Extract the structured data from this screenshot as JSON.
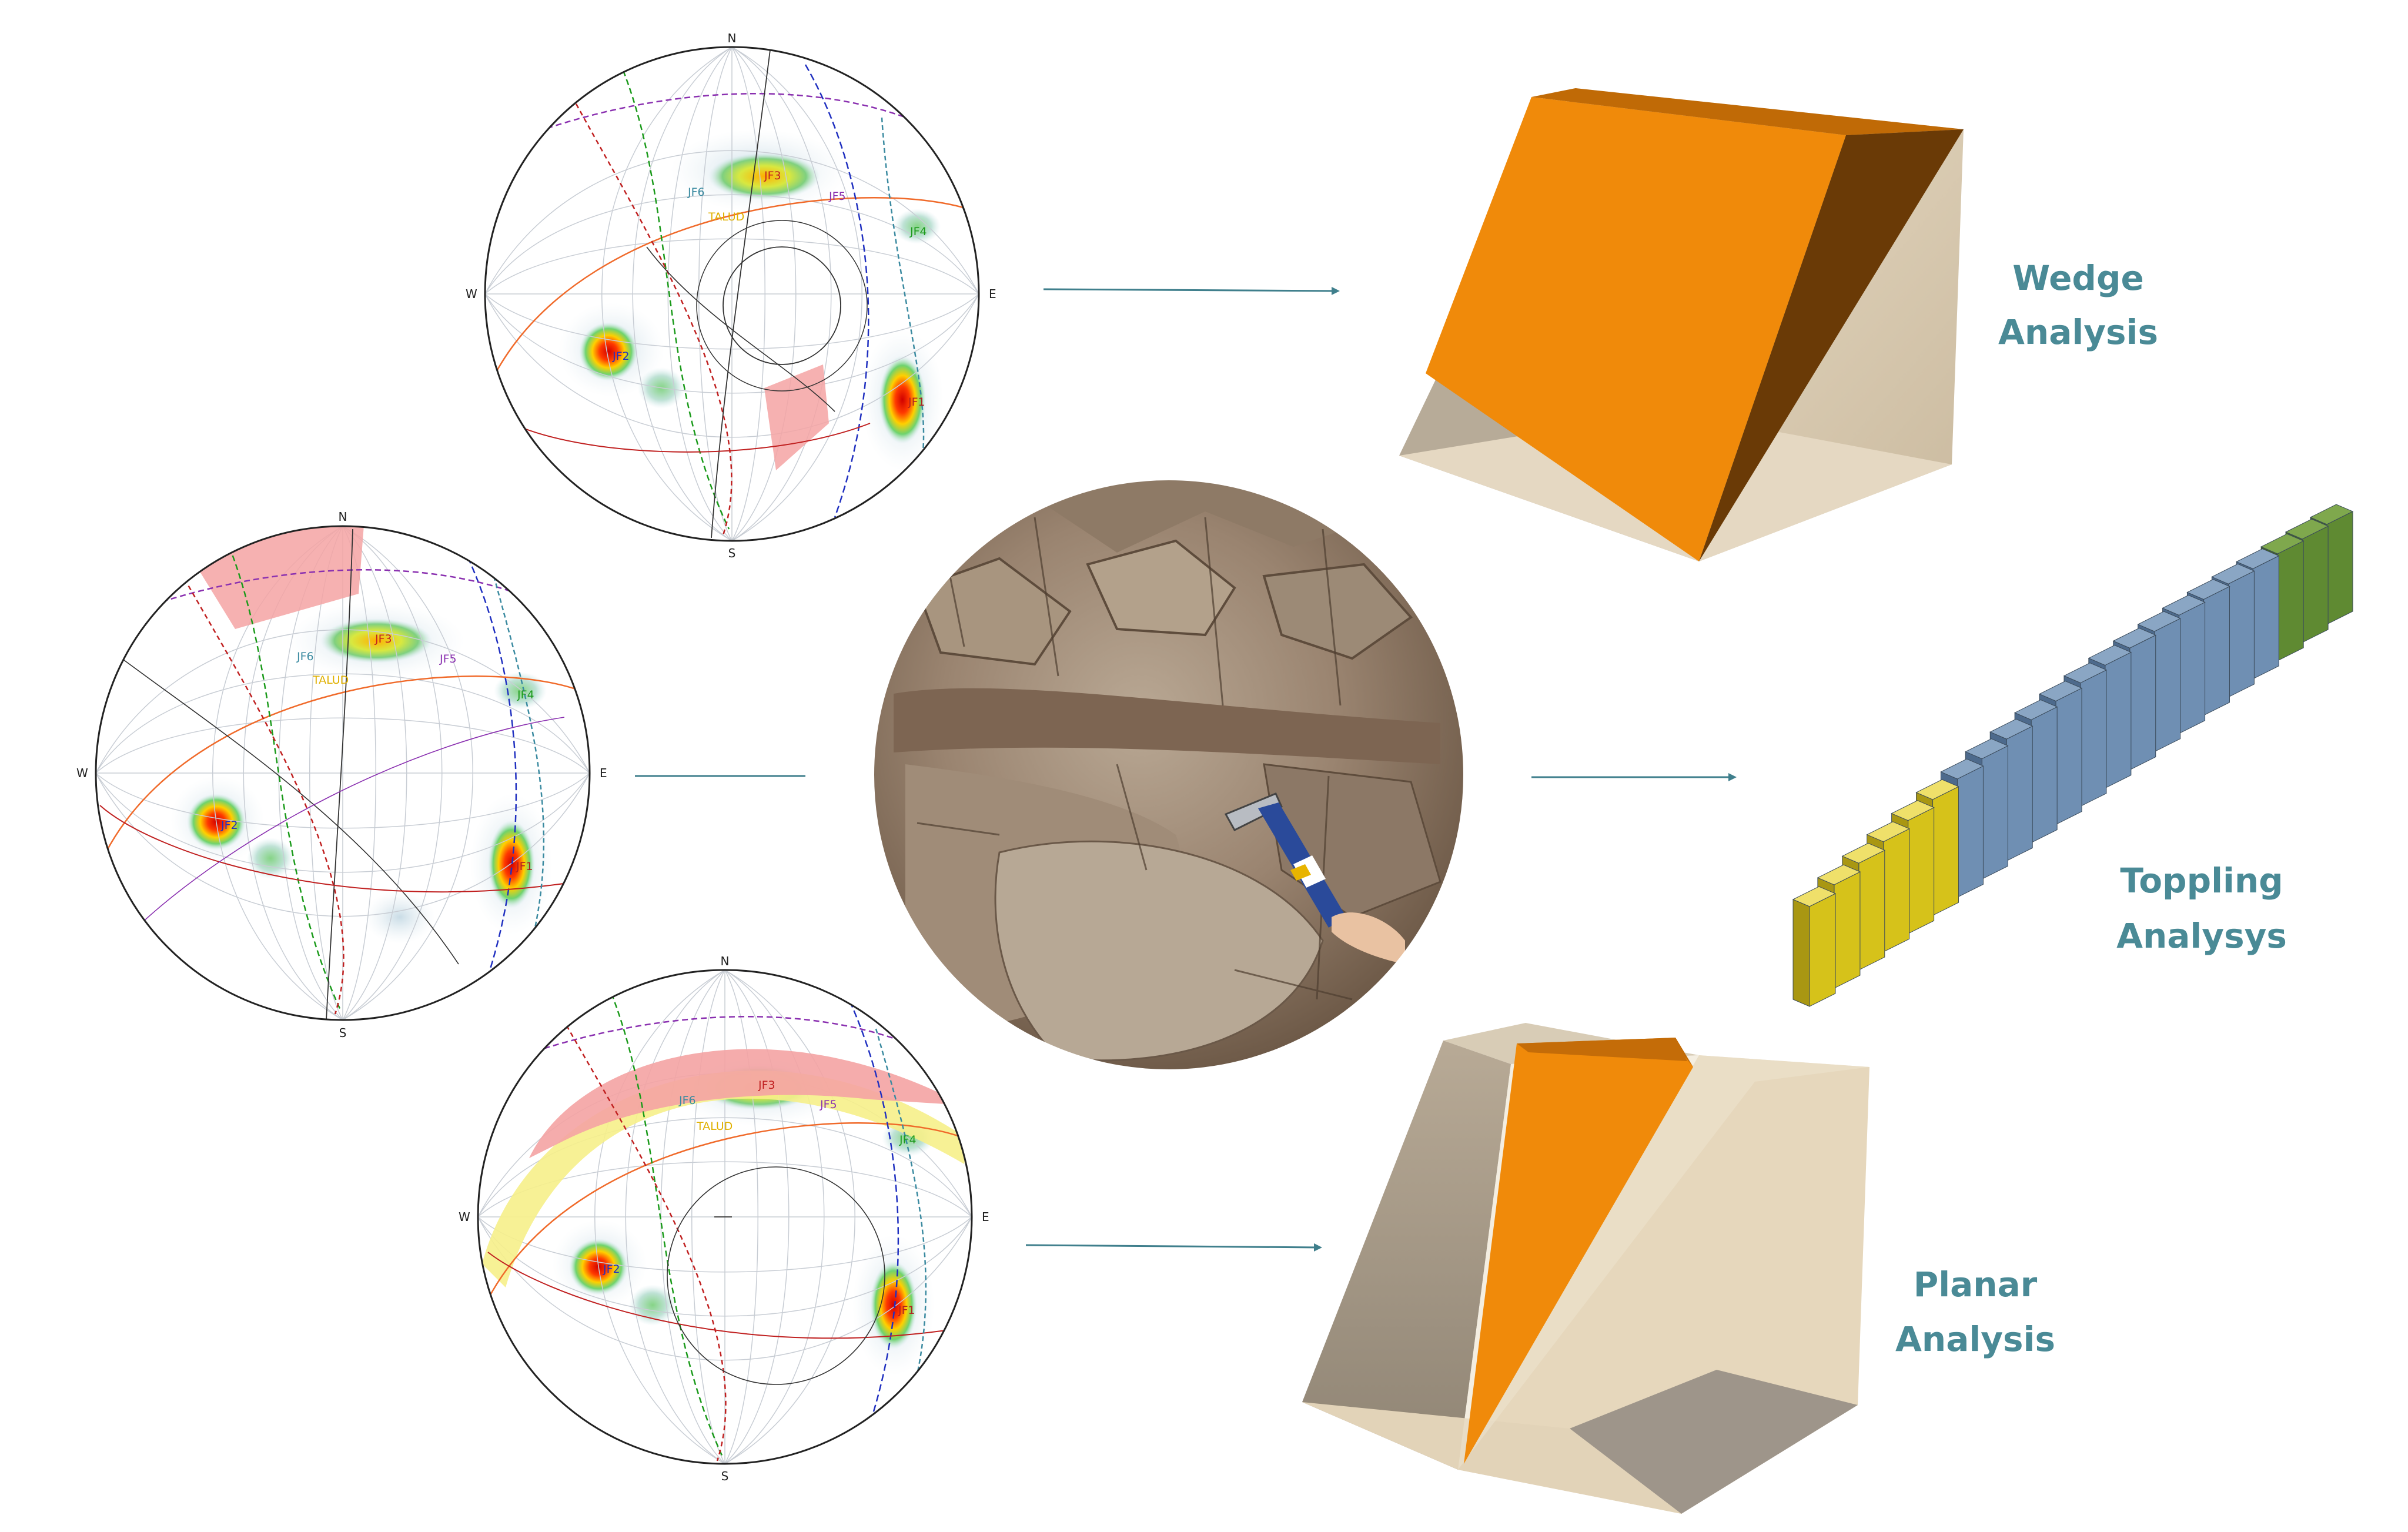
{
  "stereonets": [
    {
      "id": "top",
      "cardinal": {
        "n": "N",
        "s": "S",
        "e": "E",
        "w": "W"
      },
      "labels": [
        "JF1",
        "JF2",
        "JF3",
        "JF4",
        "JF5",
        "JF6",
        "TALUD"
      ]
    },
    {
      "id": "middle",
      "cardinal": {
        "n": "N",
        "s": "S",
        "e": "E",
        "w": "W"
      },
      "labels": [
        "JF1",
        "JF2",
        "JF3",
        "JF4",
        "JF5",
        "JF6",
        "TALUD"
      ]
    },
    {
      "id": "bottom",
      "cardinal": {
        "n": "N",
        "s": "S",
        "e": "E",
        "w": "W"
      },
      "labels": [
        "JF1",
        "JF2",
        "JF3",
        "JF4",
        "JF5",
        "JF6",
        "TALUD"
      ]
    }
  ],
  "analyses": {
    "wedge": {
      "line1": "Wedge",
      "line2": "Analysis"
    },
    "toppling": {
      "line1": "Toppling",
      "line2": "Analysys"
    },
    "planar": {
      "line1": "Planar",
      "line2": "Analysis"
    }
  },
  "colors": {
    "label": "#4a8a96",
    "arrow": "#3f7f8c",
    "orange": "#f08a0a",
    "beige": "#e8dcc6",
    "topple_blue": "#6f8fb3",
    "topple_yellow": "#d6c21a",
    "topple_green": "#5f8a32",
    "jf1": "#b02020",
    "jf2": "#2030c0",
    "jf3": "#c02020",
    "jf4": "#1a9a1a",
    "jf5": "#8a30b0",
    "jf6": "#3a8aa0",
    "talud": "#e0b000"
  }
}
